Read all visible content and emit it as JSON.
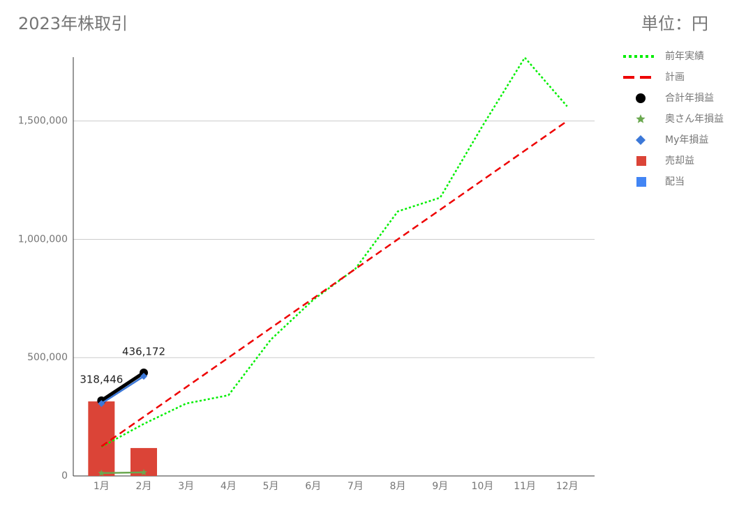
{
  "chart_data": {
    "type": "combo",
    "title": "2023年株取引",
    "subtitle": "単位：円",
    "categories": [
      "1月",
      "2月",
      "3月",
      "4月",
      "5月",
      "6月",
      "7月",
      "8月",
      "9月",
      "10月",
      "11月",
      "12月"
    ],
    "ylim": [
      0,
      1770000
    ],
    "yticks": [
      0,
      {
        "value": 500000,
        "label": "500,000"
      },
      {
        "value": 1000000,
        "label": "1,000,000"
      },
      {
        "value": 1500000,
        "label": "1,500,000"
      }
    ],
    "grid": true,
    "legend": "right",
    "series": [
      {
        "name": "前年実績",
        "type": "line",
        "dash": "dotted",
        "color": "#00ee00",
        "values": [
          123000,
          220000,
          306000,
          341000,
          576000,
          744000,
          876000,
          1118000,
          1176000,
          1479000,
          1768000,
          1562000
        ]
      },
      {
        "name": "計画",
        "type": "line",
        "dash": "dashed",
        "color": "#ee0000",
        "values": [
          125000,
          250000,
          375000,
          500000,
          625000,
          750000,
          875000,
          1000000,
          1125000,
          1250000,
          1375000,
          1500000
        ]
      },
      {
        "name": "合計年損益",
        "type": "line",
        "marker": "circle",
        "color": "#000000",
        "values": [
          318446,
          436172,
          null,
          null,
          null,
          null,
          null,
          null,
          null,
          null,
          null,
          null
        ],
        "value_labels": [
          "318,446",
          "436,172",
          null,
          null,
          null,
          null,
          null,
          null,
          null,
          null,
          null,
          null
        ]
      },
      {
        "name": "奥さん年損益",
        "type": "line",
        "marker": "star",
        "color": "#6aa84f",
        "values": [
          12000,
          15000,
          null,
          null,
          null,
          null,
          null,
          null,
          null,
          null,
          null,
          null
        ]
      },
      {
        "name": "My年損益",
        "type": "line",
        "marker": "diamond",
        "color": "#3c78d8",
        "values": [
          306000,
          421000,
          null,
          null,
          null,
          null,
          null,
          null,
          null,
          null,
          null,
          null
        ]
      },
      {
        "name": "売却益",
        "type": "bar",
        "color": "#db4437",
        "values": [
          315000,
          118000,
          null,
          null,
          null,
          null,
          null,
          null,
          null,
          null,
          null,
          null
        ]
      },
      {
        "name": "配当",
        "type": "bar",
        "color": "#4285f4",
        "values": [
          0,
          0,
          null,
          null,
          null,
          null,
          null,
          null,
          null,
          null,
          null,
          null
        ]
      }
    ]
  }
}
